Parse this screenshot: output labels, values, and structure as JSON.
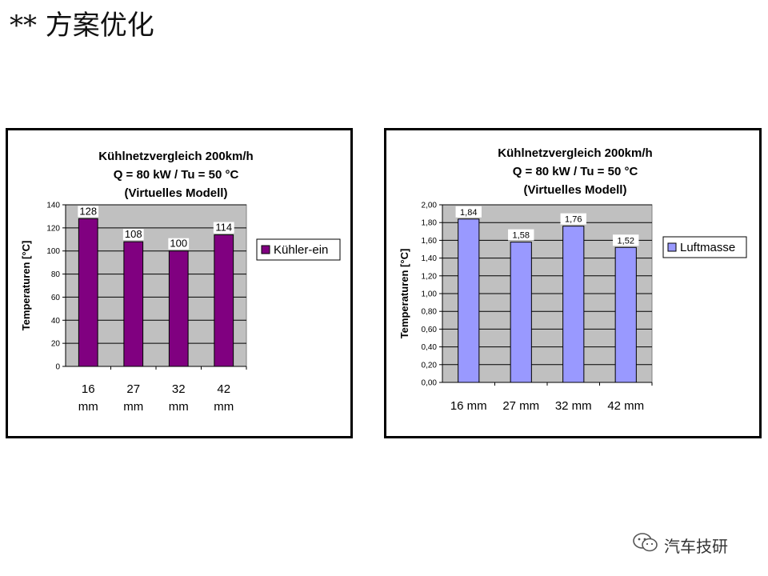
{
  "page": {
    "title": "** 方案优化",
    "watermark": "汽车技研",
    "watermark_icon": "wechat-icon"
  },
  "chart_data": [
    {
      "type": "bar",
      "title": [
        "Kühlnetzvergleich 200km/h",
        "Q = 80 kW / Tu = 50 °C",
        "(Virtuelles Modell)"
      ],
      "ylabel": "Temperaturen [°C]",
      "xlabel": "",
      "categories": [
        [
          "16",
          "mm"
        ],
        [
          "27",
          "mm"
        ],
        [
          "32",
          "mm"
        ],
        [
          "42",
          "mm"
        ]
      ],
      "series": [
        {
          "name": "Kühler-ein",
          "values": [
            128,
            108,
            100,
            114
          ],
          "color": "#800080"
        }
      ],
      "data_labels": [
        "128",
        "108",
        "100",
        "114"
      ],
      "ylim": [
        0,
        140
      ],
      "yticks": [
        0,
        20,
        40,
        60,
        80,
        100,
        120,
        140
      ],
      "ytick_labels": [
        "0",
        "20",
        "40",
        "60",
        "80",
        "100",
        "120",
        "140"
      ],
      "plot_bg": "#c0c0c0",
      "grid": true,
      "legend": "right"
    },
    {
      "type": "bar",
      "title": [
        "Kühlnetzvergleich 200km/h",
        "Q = 80 kW / Tu = 50 °C",
        "(Virtuelles Modell)"
      ],
      "ylabel": "Temperaturen [°C]",
      "xlabel": "",
      "categories": [
        [
          "16 mm"
        ],
        [
          "27 mm"
        ],
        [
          "32 mm"
        ],
        [
          "42 mm"
        ]
      ],
      "series": [
        {
          "name": "Luftmasse",
          "values": [
            1.84,
            1.58,
            1.76,
            1.52
          ],
          "color": "#9999ff"
        }
      ],
      "data_labels": [
        "1,84",
        "1,58",
        "1,76",
        "1,52"
      ],
      "ylim": [
        0,
        2
      ],
      "yticks": [
        0,
        0.2,
        0.4,
        0.6,
        0.8,
        1.0,
        1.2,
        1.4,
        1.6,
        1.8,
        2.0
      ],
      "ytick_labels": [
        "0,00",
        "0,20",
        "0,40",
        "0,60",
        "0,80",
        "1,00",
        "1,20",
        "1,40",
        "1,60",
        "1,80",
        "2,00"
      ],
      "plot_bg": "#c0c0c0",
      "grid": true,
      "legend": "right"
    }
  ]
}
